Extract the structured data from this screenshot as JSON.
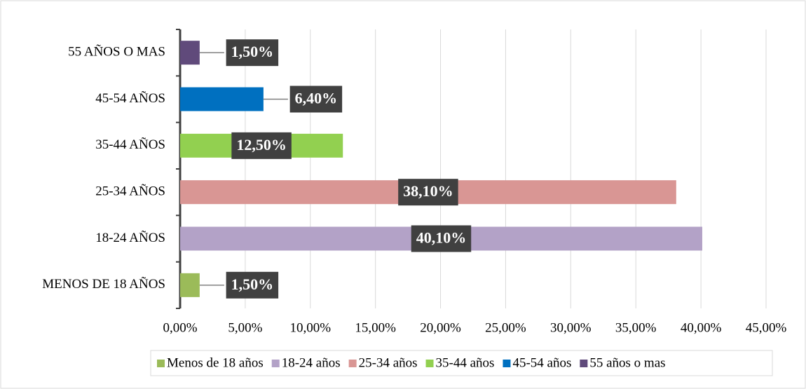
{
  "chart_data": {
    "type": "bar",
    "orientation": "horizontal",
    "categories": [
      "MENOS DE 18 AÑOS",
      "18-24 AÑOS",
      "25-34 AÑOS",
      "35-44 AÑOS",
      "45-54 AÑOS",
      "55 AÑOS O MAS"
    ],
    "values": [
      1.5,
      40.1,
      38.1,
      12.5,
      6.4,
      1.5
    ],
    "value_labels": [
      "1,50%",
      "40,10%",
      "38,10%",
      "12,50%",
      "6,40%",
      "1,50%"
    ],
    "colors": [
      "#9bbb59",
      "#b3a2c7",
      "#d99694",
      "#92d050",
      "#0070c0",
      "#604a7b"
    ],
    "legend": [
      "Menos de 18 años",
      "18-24 años",
      "25-34 años",
      "35-44 años",
      "45-54 años",
      "55 años o mas"
    ],
    "xlim": [
      0,
      45
    ],
    "xticks": [
      {
        "value": 0,
        "label": "0,00%"
      },
      {
        "value": 5,
        "label": "5,00%"
      },
      {
        "value": 10,
        "label": "10,00%"
      },
      {
        "value": 15,
        "label": "15,00%"
      },
      {
        "value": 20,
        "label": "20,00%"
      },
      {
        "value": 25,
        "label": "25,00%"
      },
      {
        "value": 30,
        "label": "30,00%"
      },
      {
        "value": 35,
        "label": "35,00%"
      },
      {
        "value": 40,
        "label": "40,00%"
      },
      {
        "value": 45,
        "label": "45,00%"
      }
    ],
    "grid": true,
    "legend_position": "bottom"
  }
}
